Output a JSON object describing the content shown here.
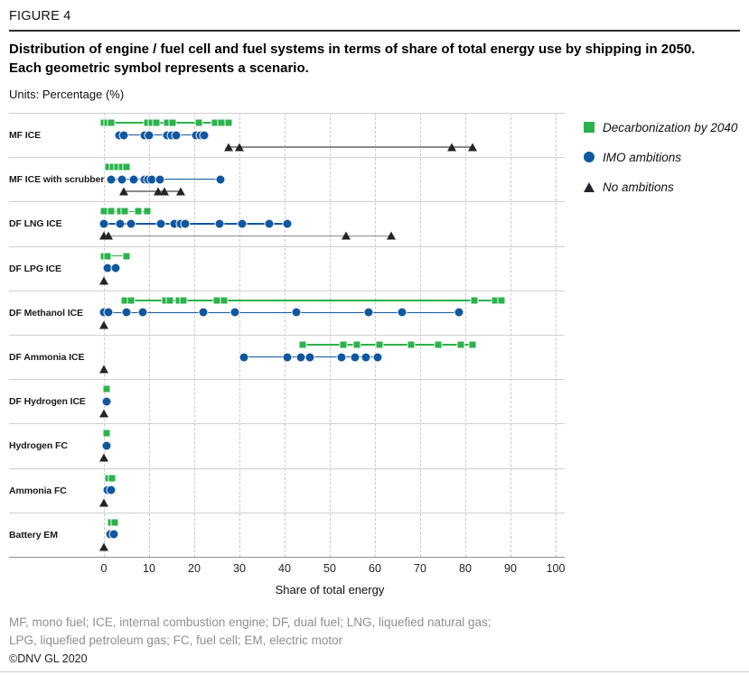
{
  "figure": {
    "label": "FIGURE 4",
    "title": "Distribution of engine / fuel cell and fuel systems in terms of share of total energy use by shipping in 2050. Each geometric symbol represents a scenario.",
    "units_prefix": "Units:",
    "units_value": "Percentage (%)"
  },
  "colors": {
    "decarbonization_2040": "#2bb24c",
    "imo_ambitions": "#1057a0",
    "no_ambitions": "#23242a",
    "no_ambitions_line": "#8a8a8a",
    "gridline": "#c9c9c9",
    "separator": "#d0d0d0"
  },
  "legend": [
    {
      "label": "Decarbonization by 2040",
      "marker": "green-square"
    },
    {
      "label": "IMO ambitions",
      "marker": "blue-circle"
    },
    {
      "label": "No ambitions",
      "marker": "black-triangle"
    }
  ],
  "chart_data": {
    "type": "scatter",
    "title": "Distribution of engine / fuel cell and fuel systems in terms of share of total energy use by shipping in 2050. Each geometric symbol represents a scenario.",
    "xlabel": "Share of total energy",
    "ylabel": "",
    "xlim": [
      0,
      100
    ],
    "xticks": [
      0,
      10,
      20,
      30,
      40,
      50,
      60,
      70,
      80,
      90,
      100
    ],
    "grid": "vertical-dashed",
    "legend_position": "right-top",
    "series_meta": [
      {
        "key": "decarbonization_2040",
        "name": "Decarbonization by 2040",
        "marker": "square",
        "lane_offset": 10
      },
      {
        "key": "imo_ambitions",
        "name": "IMO ambitions",
        "marker": "circle",
        "lane_offset": 23.5
      },
      {
        "key": "no_ambitions",
        "name": "No ambitions",
        "marker": "triangle",
        "lane_offset": 37
      }
    ],
    "rows": [
      {
        "label": "MF ICE",
        "decarbonization_2040": [
          0,
          0.8,
          1.5,
          9.5,
          10.5,
          11.5,
          14,
          15.2,
          21,
          24.5,
          26,
          27.5
        ],
        "imo_ambitions": [
          3.3,
          4.3,
          9,
          10,
          14,
          15,
          16,
          20.3,
          21.3,
          22.2
        ],
        "no_ambitions": [
          27.5,
          30,
          77,
          81.5
        ]
      },
      {
        "label": "MF ICE with scrubber",
        "decarbonization_2040": [
          1,
          2,
          3,
          4,
          5
        ],
        "imo_ambitions": [
          1.5,
          4,
          6.5,
          9,
          9.7,
          10.5,
          12.3,
          25.7
        ],
        "no_ambitions": [
          4.3,
          12,
          13.3,
          17
        ]
      },
      {
        "label": "DF LNG ICE",
        "decarbonization_2040": [
          0,
          1.5,
          3.5,
          4.5,
          7.5,
          9.5
        ],
        "imo_ambitions": [
          0,
          3.5,
          6,
          12.5,
          15.5,
          17,
          18,
          25.5,
          30.5,
          36.5,
          40.5
        ],
        "no_ambitions": [
          0,
          1,
          53.5,
          63.5
        ]
      },
      {
        "label": "DF LPG ICE",
        "decarbonization_2040": [
          0,
          0.8,
          5
        ],
        "imo_ambitions": [
          0.8,
          2.5
        ],
        "no_ambitions": [
          0
        ]
      },
      {
        "label": "DF Methanol ICE",
        "decarbonization_2040": [
          4.5,
          6,
          13.5,
          14.5,
          16.5,
          17.5,
          25,
          26.5,
          82,
          86.5,
          88
        ],
        "imo_ambitions": [
          0,
          1,
          5,
          8.5,
          22,
          29,
          42.5,
          58.5,
          66,
          78.5
        ],
        "no_ambitions": [
          0
        ]
      },
      {
        "label": "DF Ammonia ICE",
        "decarbonization_2040": [
          44,
          53,
          56,
          61,
          68,
          74,
          79,
          81.5
        ],
        "imo_ambitions": [
          31,
          40.5,
          43.5,
          45.5,
          52.5,
          55.5,
          58,
          60.5
        ],
        "no_ambitions": [
          0
        ]
      },
      {
        "label": "DF Hydrogen ICE",
        "decarbonization_2040": [
          0.5
        ],
        "imo_ambitions": [
          0.5
        ],
        "no_ambitions": [
          0
        ]
      },
      {
        "label": "Hydrogen FC",
        "decarbonization_2040": [
          0.5
        ],
        "imo_ambitions": [
          0.5
        ],
        "no_ambitions": [
          0
        ]
      },
      {
        "label": "Ammonia FC",
        "decarbonization_2040": [
          1,
          1.7
        ],
        "imo_ambitions": [
          0.8,
          1.6
        ],
        "no_ambitions": [
          0
        ]
      },
      {
        "label": "Battery EM",
        "decarbonization_2040": [
          1.5,
          2.3
        ],
        "imo_ambitions": [
          1.3,
          2.1
        ],
        "no_ambitions": [
          0
        ]
      }
    ]
  },
  "footer": {
    "notes": [
      "MF, mono fuel; ICE, internal combustion engine; DF, dual fuel; LNG, liquefied natural gas;",
      "LPG, liquefied petroleum gas; FC, fuel cell; EM, electric motor"
    ],
    "copyright": "©DNV GL 2020"
  }
}
